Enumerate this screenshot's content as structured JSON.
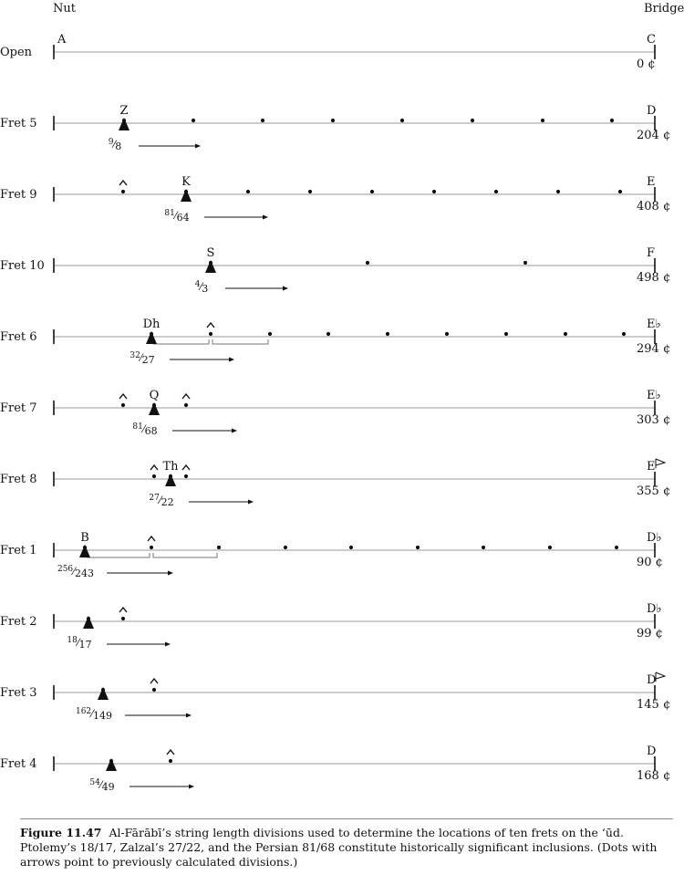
{
  "header": {
    "left": "Nut",
    "right": "Bridge"
  },
  "rows": [
    {
      "label": "Open",
      "note": "C",
      "cents": "0 ¢",
      "markers": [
        {
          "letter": "A",
          "pos": 63,
          "kind": "text"
        }
      ],
      "dots": [],
      "carets": [],
      "tri": null,
      "ratio": null,
      "arrowEnd": null,
      "brackets": []
    },
    {
      "label": "Fret 5",
      "note": "D",
      "cents": "204 ¢",
      "markers": [
        {
          "letter": "Z",
          "pos": 136
        }
      ],
      "dots": [
        136,
        212,
        288,
        365,
        441,
        518,
        595,
        671
      ],
      "carets": [],
      "tri": 136,
      "ratio": {
        "num": "9",
        "den": "8"
      },
      "arrowEnd": 220,
      "brackets": []
    },
    {
      "label": "Fret 9",
      "note": "E",
      "cents": "408 ¢",
      "markers": [
        {
          "letter": "K",
          "pos": 204
        }
      ],
      "dots": [
        135,
        204,
        272,
        340,
        408,
        476,
        544,
        612,
        680
      ],
      "carets": [
        135
      ],
      "tri": 204,
      "ratio": {
        "num": "81",
        "den": "64"
      },
      "arrowEnd": 294,
      "brackets": []
    },
    {
      "label": "Fret 10",
      "note": "F",
      "cents": "498 ¢",
      "markers": [
        {
          "letter": "S",
          "pos": 231
        }
      ],
      "dots": [
        231,
        403,
        576
      ],
      "carets": [],
      "tri": 231,
      "ratio": {
        "num": "4",
        "den": "3"
      },
      "arrowEnd": 316,
      "brackets": []
    },
    {
      "label": "Fret 6",
      "note": "E♭",
      "cents": "294 ¢",
      "markers": [
        {
          "letter": "Dh",
          "pos": 166
        }
      ],
      "dots": [
        166,
        231,
        296,
        360,
        425,
        490,
        555,
        620,
        684
      ],
      "carets": [
        231
      ],
      "tri": 166,
      "ratio": {
        "num": "32",
        "den": "27"
      },
      "arrowEnd": 257,
      "brackets": [
        [
          166,
          231
        ],
        [
          231,
          296
        ]
      ]
    },
    {
      "label": "Fret 7",
      "note": "E♭",
      "cents": "303 ¢",
      "markers": [
        {
          "letter": "Q",
          "pos": 169
        }
      ],
      "dots": [
        135,
        169,
        204
      ],
      "carets": [
        135,
        204
      ],
      "tri": 169,
      "ratio": {
        "num": "81",
        "den": "68"
      },
      "arrowEnd": 260,
      "brackets": []
    },
    {
      "label": "Fret 8",
      "note": "E",
      "cents": "355 ¢",
      "markers": [
        {
          "letter": "Th",
          "pos": 187
        }
      ],
      "dots": [
        169,
        187,
        204
      ],
      "carets": [
        169,
        204
      ],
      "tri": 187,
      "ratio": {
        "num": "27",
        "den": "22"
      },
      "arrowEnd": 278,
      "brackets": [],
      "flagNote": true
    },
    {
      "label": "Fret 1",
      "note": "D♭",
      "cents": "90 ¢",
      "markers": [
        {
          "letter": "B",
          "pos": 93
        }
      ],
      "dots": [
        93,
        166,
        240,
        313,
        385,
        458,
        530,
        603,
        676
      ],
      "carets": [
        166
      ],
      "tri": 93,
      "ratio": {
        "num": "256",
        "den": "243"
      },
      "arrowEnd": 190,
      "brackets": [
        [
          93,
          166
        ],
        [
          166,
          240
        ]
      ]
    },
    {
      "label": "Fret 2",
      "note": "D♭",
      "cents": "99 ¢",
      "markers": [],
      "dots": [
        97,
        135
      ],
      "carets": [
        135
      ],
      "tri": 97,
      "ratio": {
        "num": "18",
        "den": "17"
      },
      "arrowEnd": 187,
      "brackets": []
    },
    {
      "label": "Fret 3",
      "note": "D",
      "cents": "145 ¢",
      "markers": [],
      "dots": [
        113,
        169
      ],
      "carets": [
        169
      ],
      "tri": 113,
      "ratio": {
        "num": "162",
        "den": "149"
      },
      "arrowEnd": 210,
      "brackets": [],
      "flagNote": true
    },
    {
      "label": "Fret 4",
      "note": "D",
      "cents": "168 ¢",
      "markers": [],
      "dots": [
        122,
        187
      ],
      "carets": [
        187
      ],
      "tri": 122,
      "ratio": {
        "num": "54",
        "den": "49"
      },
      "arrowEnd": 213,
      "brackets": []
    }
  ],
  "caption": {
    "figure": "Figure 11.47",
    "text": "Al-Fārābī’s string length divisions used to determine the locations of ten frets on the ‘ūd. Ptolemy’s 18/17, Zalzal’s 27/22, and the Persian 81/68 constitute historically significant inclusions. (Dots with arrows point to previously calculated divisions.)"
  }
}
